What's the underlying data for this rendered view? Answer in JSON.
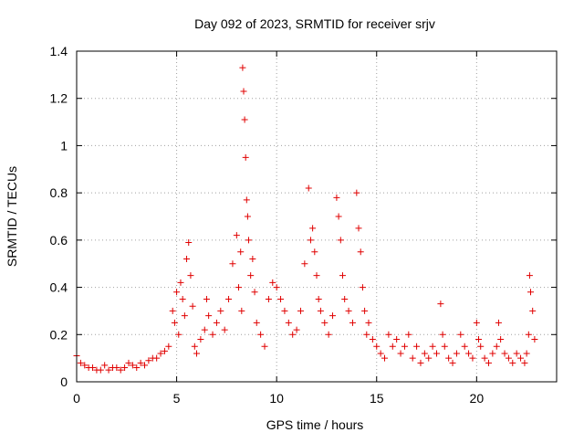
{
  "chart_data": {
    "type": "scatter",
    "title": "Day 092 of 2023, SRMTID for receiver srjv",
    "xlabel": "GPS time / hours",
    "ylabel": "SRMTID / TECUs",
    "xlim": [
      0,
      24
    ],
    "ylim": [
      0,
      1.4
    ],
    "xticks": [
      0,
      5,
      10,
      15,
      20
    ],
    "xtick_labels": [
      "0",
      "5",
      "10",
      "15",
      "20"
    ],
    "yticks": [
      0,
      0.2,
      0.4,
      0.6,
      0.8,
      1.0,
      1.2,
      1.4
    ],
    "ytick_labels": [
      "0",
      "0.2",
      "0.4",
      "0.6",
      "0.8",
      "1",
      "1.2",
      "1.4"
    ],
    "grid": true,
    "marker": "+",
    "color": "#e00000",
    "series": [
      {
        "name": "srjv",
        "x": [
          0.0,
          0.2,
          0.4,
          0.6,
          0.8,
          1.0,
          1.2,
          1.4,
          1.6,
          1.8,
          2.0,
          2.2,
          2.4,
          2.6,
          2.8,
          3.0,
          3.2,
          3.4,
          3.6,
          3.8,
          4.0,
          4.2,
          4.4,
          4.6,
          4.8,
          4.9,
          5.0,
          5.1,
          5.2,
          5.3,
          5.4,
          5.5,
          5.6,
          5.7,
          5.8,
          5.9,
          6.0,
          6.2,
          6.4,
          6.5,
          6.6,
          6.8,
          7.0,
          7.2,
          7.4,
          7.6,
          7.8,
          8.0,
          8.1,
          8.2,
          8.25,
          8.3,
          8.35,
          8.4,
          8.45,
          8.5,
          8.55,
          8.6,
          8.7,
          8.8,
          8.9,
          9.0,
          9.2,
          9.4,
          9.6,
          9.8,
          10.0,
          10.2,
          10.4,
          10.6,
          10.8,
          11.0,
          11.2,
          11.4,
          11.6,
          11.7,
          11.8,
          11.9,
          12.0,
          12.1,
          12.2,
          12.4,
          12.6,
          12.8,
          13.0,
          13.1,
          13.2,
          13.3,
          13.4,
          13.6,
          13.8,
          14.0,
          14.1,
          14.2,
          14.3,
          14.4,
          14.5,
          14.6,
          14.8,
          15.0,
          15.2,
          15.4,
          15.6,
          15.8,
          16.0,
          16.2,
          16.4,
          16.6,
          16.8,
          17.0,
          17.2,
          17.4,
          17.6,
          17.8,
          18.0,
          18.2,
          18.3,
          18.4,
          18.6,
          18.8,
          19.0,
          19.2,
          19.4,
          19.6,
          19.8,
          20.0,
          20.1,
          20.2,
          20.4,
          20.6,
          20.8,
          21.0,
          21.1,
          21.2,
          21.4,
          21.6,
          21.8,
          22.0,
          22.2,
          22.4,
          22.5,
          22.6,
          22.65,
          22.7,
          22.8,
          22.9
        ],
        "y": [
          0.11,
          0.08,
          0.07,
          0.06,
          0.06,
          0.05,
          0.05,
          0.07,
          0.05,
          0.06,
          0.06,
          0.05,
          0.06,
          0.08,
          0.07,
          0.06,
          0.08,
          0.07,
          0.09,
          0.1,
          0.1,
          0.12,
          0.13,
          0.15,
          0.3,
          0.25,
          0.38,
          0.2,
          0.42,
          0.35,
          0.28,
          0.52,
          0.59,
          0.45,
          0.32,
          0.15,
          0.12,
          0.18,
          0.22,
          0.35,
          0.28,
          0.2,
          0.25,
          0.3,
          0.22,
          0.35,
          0.5,
          0.62,
          0.4,
          0.55,
          0.3,
          1.33,
          1.23,
          1.11,
          0.95,
          0.77,
          0.7,
          0.6,
          0.45,
          0.52,
          0.38,
          0.25,
          0.2,
          0.15,
          0.35,
          0.42,
          0.4,
          0.35,
          0.3,
          0.25,
          0.2,
          0.22,
          0.3,
          0.5,
          0.82,
          0.6,
          0.65,
          0.55,
          0.45,
          0.35,
          0.3,
          0.25,
          0.2,
          0.28,
          0.78,
          0.7,
          0.6,
          0.45,
          0.35,
          0.3,
          0.25,
          0.8,
          0.65,
          0.55,
          0.4,
          0.3,
          0.2,
          0.25,
          0.18,
          0.15,
          0.12,
          0.1,
          0.2,
          0.15,
          0.18,
          0.12,
          0.15,
          0.2,
          0.1,
          0.15,
          0.08,
          0.12,
          0.1,
          0.15,
          0.12,
          0.33,
          0.2,
          0.15,
          0.1,
          0.08,
          0.12,
          0.2,
          0.15,
          0.12,
          0.1,
          0.25,
          0.18,
          0.15,
          0.1,
          0.08,
          0.12,
          0.15,
          0.25,
          0.18,
          0.12,
          0.1,
          0.08,
          0.12,
          0.1,
          0.08,
          0.12,
          0.2,
          0.45,
          0.38,
          0.3,
          0.18
        ]
      }
    ]
  }
}
